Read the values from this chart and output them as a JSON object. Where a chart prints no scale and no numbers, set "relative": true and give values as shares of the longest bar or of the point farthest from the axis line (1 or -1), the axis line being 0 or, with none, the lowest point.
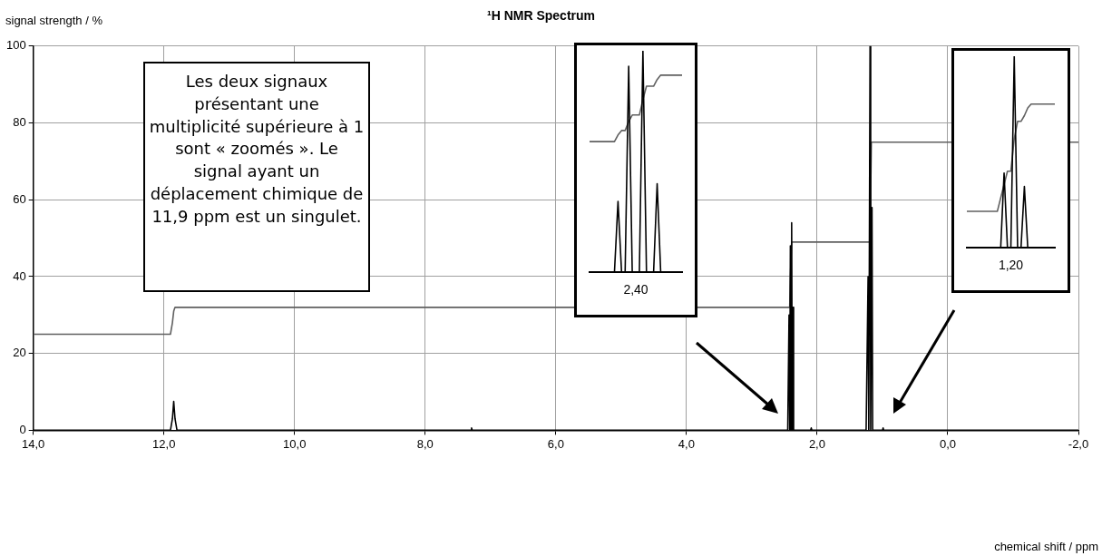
{
  "chart_data": [
    {
      "type": "line",
      "title": "¹H NMR Spectrum",
      "ylabel": "signal strength / %",
      "xlabel": "chemical shift / ppm",
      "annotations": [
        "Les deux signaux présentant une multiplicité supérieure à 1 sont « zoomés ». Le signal ayant un déplacement chimique de 11,9 ppm est un singulet."
      ],
      "xlim": [
        14,
        -2
      ],
      "xticks": [
        {
          "value": 14,
          "label": "14,0"
        },
        {
          "value": 12,
          "label": "12,0"
        },
        {
          "value": 10,
          "label": "10,0"
        },
        {
          "value": 8,
          "label": "8,0"
        },
        {
          "value": 6,
          "label": "6,0"
        },
        {
          "value": 4,
          "label": "4,0"
        },
        {
          "value": 2,
          "label": "2,0"
        },
        {
          "value": 0,
          "label": "0,0"
        },
        {
          "value": -2,
          "label": "-2,0"
        }
      ],
      "ylim": [
        0,
        100
      ],
      "yticks": [
        0,
        20,
        40,
        60,
        80,
        100
      ],
      "grid": true,
      "marker": "none",
      "series": [
        {
          "color": "#000000",
          "x": [
            14,
            11.9,
            11.87,
            11.85,
            11.83,
            11.8,
            7.3,
            7.29,
            7.28,
            2.45,
            2.43,
            2.42,
            2.41,
            2.4,
            2.39,
            2.38,
            2.37,
            2.36,
            2.1,
            2.09,
            2.08,
            1.25,
            1.22,
            1.21,
            1.19,
            1.18,
            1.16,
            1.15,
            1.0,
            0.99,
            0.98,
            -2
          ],
          "values": [
            0,
            0,
            3,
            7.5,
            3,
            0,
            0,
            0.6,
            0,
            0,
            30,
            0,
            48,
            0,
            54,
            0,
            32,
            0,
            0,
            0.6,
            0,
            0,
            40,
            0,
            100,
            0,
            58,
            0,
            0,
            0.6,
            0,
            0
          ]
        },
        {
          "color": "#606060",
          "x": [
            14,
            11.9,
            11.87,
            11.85,
            11.83,
            2.42,
            2.41,
            2.39,
            1.19,
            1.18,
            1.17,
            -2
          ],
          "values": [
            25,
            25,
            28,
            31,
            32,
            32,
            40,
            49,
            49,
            62,
            75,
            75
          ]
        }
      ]
    },
    {
      "type": "line",
      "relative": true,
      "marker": "none",
      "annotations": [
        "2,40"
      ],
      "categories": [
        null,
        null,
        null,
        null,
        null,
        null,
        null,
        null,
        null,
        null,
        null,
        null,
        null,
        null,
        null,
        null,
        null,
        null,
        null,
        null,
        null,
        null,
        null,
        null,
        null,
        null,
        null
      ],
      "series": [
        {
          "color": "#000000",
          "values": [
            0,
            0,
            0,
            0,
            0,
            0,
            0,
            0,
            0.32,
            0,
            0,
            0.93,
            0,
            0,
            0,
            1,
            0,
            0,
            0,
            0.4,
            0,
            0,
            0,
            0,
            0,
            0,
            0
          ]
        },
        {
          "color": "#606060",
          "values": [
            0.59,
            0.59,
            0.59,
            0.59,
            0.59,
            0.59,
            0.59,
            0.59,
            0.62,
            0.64,
            0.64,
            0.68,
            0.71,
            0.71,
            0.71,
            0.78,
            0.84,
            0.84,
            0.84,
            0.87,
            0.89,
            0.89,
            0.89,
            0.89,
            0.89,
            0.89,
            0.89
          ]
        }
      ]
    },
    {
      "type": "line",
      "relative": true,
      "marker": "none",
      "annotations": [
        "1,20"
      ],
      "categories": [
        null,
        null,
        null,
        null,
        null,
        null,
        null,
        null,
        null,
        null,
        null,
        null,
        null,
        null,
        null,
        null,
        null,
        null,
        null,
        null,
        null,
        null,
        null,
        null,
        null,
        null,
        null
      ],
      "series": [
        {
          "color": "#000000",
          "values": [
            0,
            0,
            0,
            0,
            0,
            0,
            0,
            0,
            0,
            0,
            0,
            0.39,
            0,
            0,
            1,
            0,
            0,
            0.32,
            0,
            0,
            0,
            0,
            0,
            0,
            0,
            0,
            0
          ]
        },
        {
          "color": "#606060",
          "values": [
            0.19,
            0.19,
            0.19,
            0.19,
            0.19,
            0.19,
            0.19,
            0.19,
            0.19,
            0.19,
            0.26,
            0.33,
            0.4,
            0.4,
            0.57,
            0.66,
            0.66,
            0.69,
            0.73,
            0.75,
            0.75,
            0.75,
            0.75,
            0.75,
            0.75,
            0.75,
            0.75
          ]
        }
      ]
    }
  ]
}
